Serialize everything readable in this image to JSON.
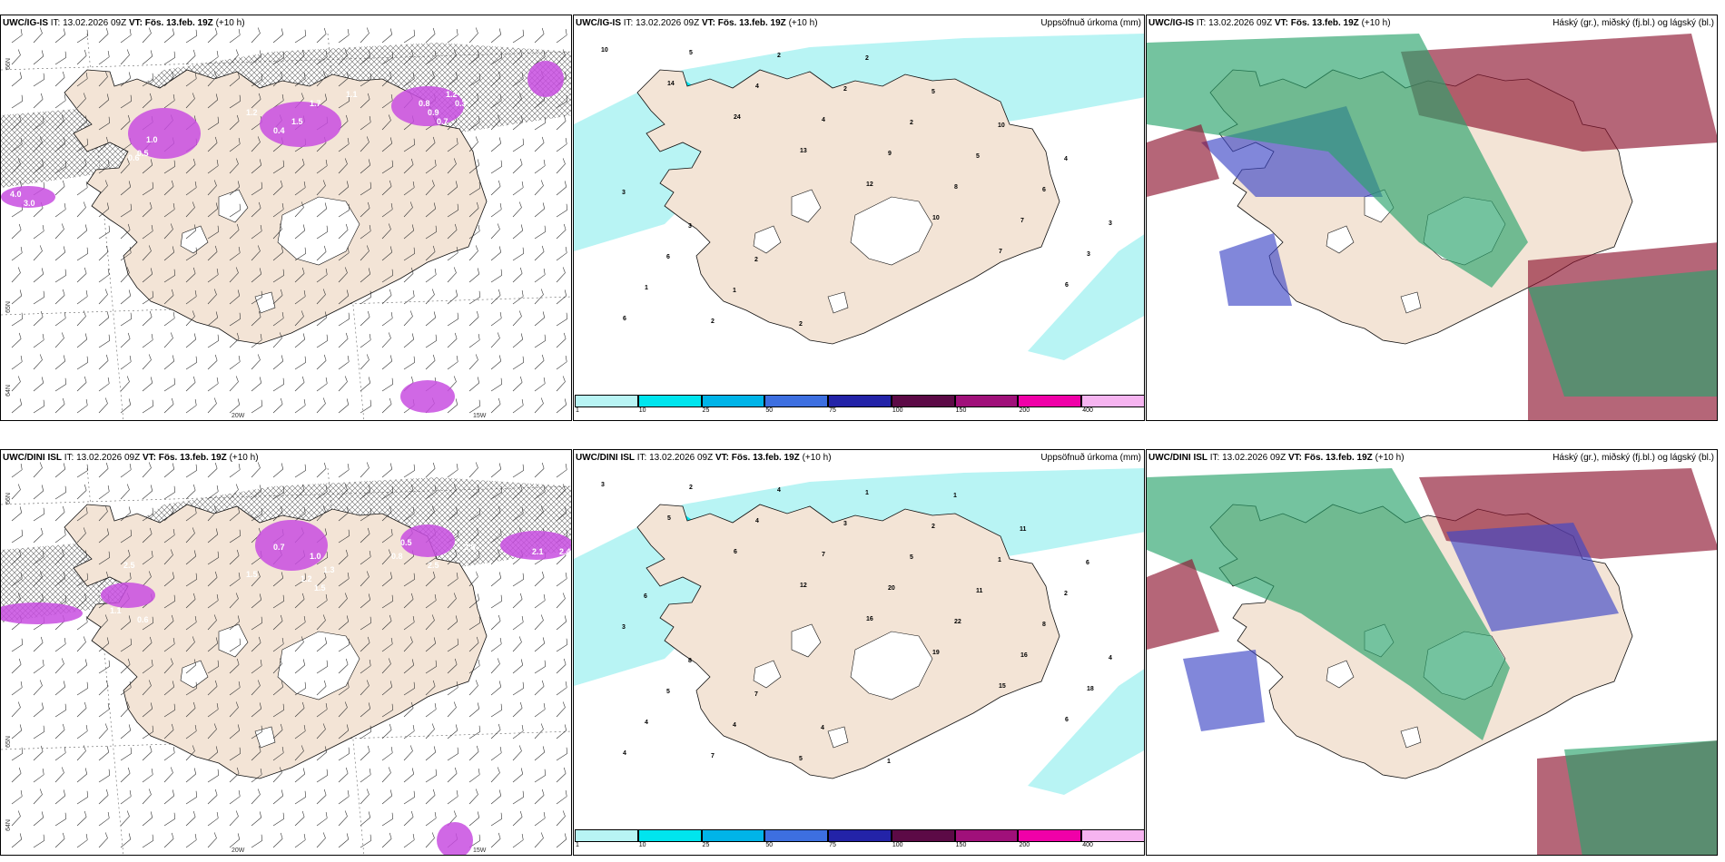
{
  "panels": [
    {
      "model": "UWC/IG-IS",
      "it_label": "IT:",
      "it_value": "13.02.2026 09Z",
      "vt_label": "VT:",
      "vt_value": "Fös. 13.feb. 19Z",
      "lead": "(+10 h)",
      "right_label": "",
      "axis": {
        "lon1": "20W",
        "lon2": "15W",
        "lat1": "64N",
        "lat2": "65N",
        "lat3": "66N"
      },
      "values": [
        "4.0",
        "3.0",
        "0.9",
        "0.5",
        "1.0",
        "0.6",
        "1.2",
        "0.4",
        "1.5",
        "1.7",
        "1.1",
        "0.8",
        "0.9",
        "1.2",
        "0.7",
        "0.3"
      ]
    },
    {
      "model": "UWC/IG-IS",
      "it_label": "IT:",
      "it_value": "13.02.2026 09Z",
      "vt_label": "VT:",
      "vt_value": "Fös. 13.feb. 19Z",
      "lead": "(+10 h)",
      "right_label": "Uppsöfnuð úrkoma (mm)",
      "points": [
        "10",
        "14",
        "24",
        "13",
        "12",
        "10",
        "7",
        "6",
        "6",
        "5",
        "4",
        "4",
        "9",
        "8",
        "7",
        "3",
        "1",
        "2",
        "2",
        "2",
        "2",
        "5",
        "6",
        "3",
        "6",
        "1",
        "2",
        "2",
        "5",
        "10",
        "4",
        "3",
        "3",
        "2"
      ]
    },
    {
      "model": "UWC/IG-IS",
      "it_label": "IT:",
      "it_value": "13.02.2026 09Z",
      "vt_label": "VT:",
      "vt_value": "Fös. 13.feb. 19Z",
      "lead": "(+10 h)",
      "right_label": "Háský (gr.), miðský (fj.bl.) og lágský (bl.)"
    },
    {
      "model": "UWC/DINI ISL",
      "it_label": "IT:",
      "it_value": "13.02.2026 09Z",
      "vt_label": "VT:",
      "vt_value": "Fös. 13.feb. 19Z",
      "lead": "(+10 h)",
      "right_label": "",
      "axis": {
        "lon1": "20W",
        "lon2": "15W",
        "lat1": "64N",
        "lat2": "65N",
        "lat3": "66N"
      },
      "values": [
        "2.5",
        "1.1",
        "0.6",
        "1.5",
        "0.7",
        "1.0",
        "2.5",
        "2.8",
        "1.0",
        "2.1",
        "2.4",
        "1.2",
        "0.5",
        "0.8",
        "1.5",
        "1.3"
      ]
    },
    {
      "model": "UWC/DINI ISL",
      "it_label": "IT:",
      "it_value": "13.02.2026 09Z",
      "vt_label": "VT:",
      "vt_value": "Fös. 13.feb. 19Z",
      "lead": "(+10 h)",
      "right_label": "Uppsöfnuð úrkoma (mm)",
      "points": [
        "3",
        "5",
        "6",
        "12",
        "16",
        "19",
        "15",
        "6",
        "4",
        "2",
        "4",
        "7",
        "20",
        "22",
        "16",
        "18",
        "4",
        "7",
        "4",
        "3",
        "5",
        "11",
        "8",
        "4",
        "5",
        "4",
        "5",
        "1",
        "2",
        "1",
        "2",
        "3",
        "8",
        "7",
        "4",
        "1",
        "1",
        "11",
        "6",
        "6"
      ]
    },
    {
      "model": "UWC/DINI ISL",
      "it_label": "IT:",
      "it_value": "13.02.2026 09Z",
      "vt_label": "VT:",
      "vt_value": "Fös. 13.feb. 19Z",
      "lead": "(+10 h)",
      "right_label": "Háský (gr.), miðský (fj.bl.) og lágský (bl.)"
    }
  ],
  "colorbar": {
    "ticks": [
      "1",
      "10",
      "25",
      "50",
      "75",
      "100",
      "150",
      "200",
      "400"
    ],
    "colors": [
      "#b8f4f4",
      "#00e5ee",
      "#00b4e8",
      "#3d6fe0",
      "#2323a8",
      "#5c0a46",
      "#a0107a",
      "#f000a8",
      "#f6b4f0"
    ]
  },
  "colors": {
    "land": "#f3e4d6",
    "precip_light": "#aef3f3",
    "precip_mid": "#4fe2ec",
    "snow_purple": "#c84de0",
    "high_cloud": "#2aa36b",
    "mid_cloud": "#8e1430",
    "low_cloud": "#3e47c6"
  }
}
